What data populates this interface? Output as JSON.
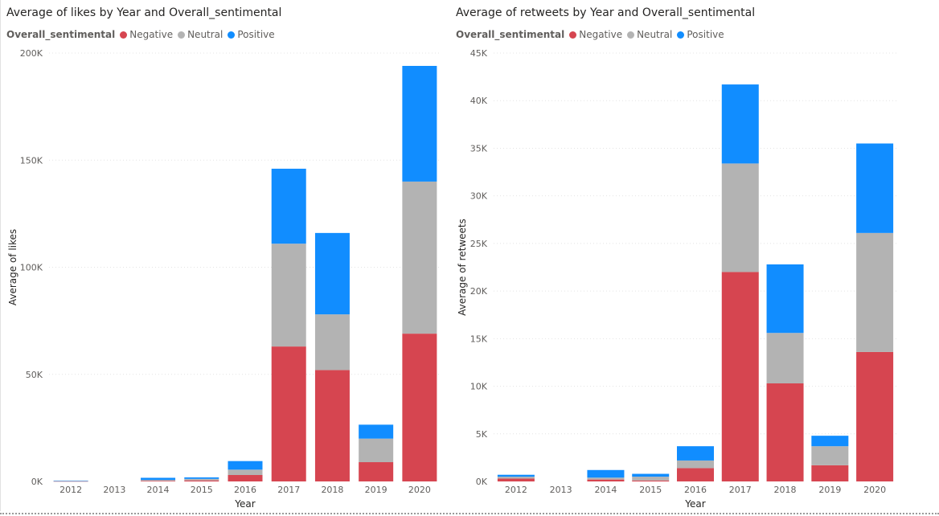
{
  "colors": {
    "Negative": "#d64550",
    "Neutral": "#b3b3b3",
    "Positive": "#118dff"
  },
  "legend_title": "Overall_sentimental",
  "chart_data": [
    {
      "type": "bar",
      "stacked": true,
      "title": "Average of likes by Year and Overall_sentimental",
      "xlabel": "Year",
      "ylabel": "Average of likes",
      "legend_title": "Overall_sentimental",
      "legend_position": "top-left",
      "grid": true,
      "categories": [
        "2012",
        "2013",
        "2014",
        "2015",
        "2016",
        "2017",
        "2018",
        "2019",
        "2020"
      ],
      "ylim": [
        0,
        200000
      ],
      "yticks": [
        0,
        50000,
        100000,
        150000,
        200000
      ],
      "ytick_labels": [
        "0K",
        "50K",
        "100K",
        "150K",
        "200K"
      ],
      "series": [
        {
          "name": "Negative",
          "values": [
            100,
            0,
            300,
            500,
            3000,
            63000,
            52000,
            9000,
            69000
          ]
        },
        {
          "name": "Neutral",
          "values": [
            150,
            0,
            400,
            700,
            2500,
            48000,
            26000,
            11000,
            71000
          ]
        },
        {
          "name": "Positive",
          "values": [
            150,
            0,
            1000,
            700,
            4000,
            35000,
            38000,
            6500,
            54000
          ]
        }
      ]
    },
    {
      "type": "bar",
      "stacked": true,
      "title": "Average of retweets by Year and Overall_sentimental",
      "xlabel": "Year",
      "ylabel": "Average of retweets",
      "legend_title": "Overall_sentimental",
      "legend_position": "top-left",
      "grid": true,
      "categories": [
        "2012",
        "2013",
        "2014",
        "2015",
        "2016",
        "2017",
        "2018",
        "2019",
        "2020"
      ],
      "ylim": [
        0,
        45000
      ],
      "yticks": [
        0,
        5000,
        10000,
        15000,
        20000,
        25000,
        30000,
        35000,
        40000,
        45000
      ],
      "ytick_labels": [
        "0K",
        "5K",
        "10K",
        "15K",
        "20K",
        "25K",
        "30K",
        "35K",
        "40K",
        "45K"
      ],
      "series": [
        {
          "name": "Negative",
          "values": [
            300,
            0,
            200,
            100,
            1400,
            22000,
            10300,
            1700,
            13600
          ]
        },
        {
          "name": "Neutral",
          "values": [
            200,
            0,
            200,
            400,
            800,
            11400,
            5300,
            2000,
            12500
          ]
        },
        {
          "name": "Positive",
          "values": [
            200,
            0,
            800,
            300,
            1500,
            8300,
            7200,
            1100,
            9400
          ]
        }
      ]
    }
  ]
}
